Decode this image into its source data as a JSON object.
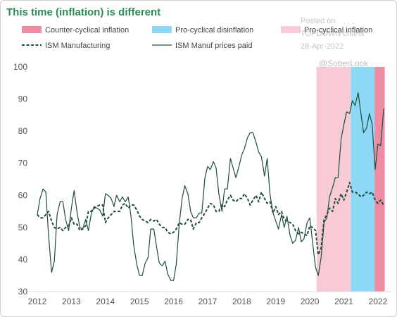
{
  "title": "This time (inflation) is different",
  "watermark": {
    "line1": "Posted on",
    "line2": "TOPDOWN charts",
    "line3": "28-Apr-2022"
  },
  "handle": "@SoberLook",
  "colors": {
    "title": "#2e8b57",
    "counter_cyclical": "#f08ba3",
    "pro_cyclical_disinflation": "#8cd8f6",
    "pro_cyclical_inflation": "#f7cad6",
    "line": "#1f4d3a",
    "axis": "#dddddd"
  },
  "chart_data": {
    "type": "line",
    "title": "This time (inflation) is different",
    "xlim": [
      2012,
      2022.25
    ],
    "ylim": [
      30,
      100
    ],
    "x_ticks": [
      "2012",
      "2013",
      "2014",
      "2015",
      "2016",
      "2017",
      "2018",
      "2019",
      "2020",
      "2021",
      "2022"
    ],
    "y_ticks": [
      30,
      40,
      50,
      60,
      70,
      80,
      90,
      100
    ],
    "legend_position": "top",
    "shaded_regions": [
      {
        "name": "Counter-cyclical inflation",
        "start": 2021.9,
        "end": 2022.2,
        "color": "#f08ba3"
      },
      {
        "name": "Pro-cyclical disinflation",
        "start": 2021.2,
        "end": 2021.9,
        "color": "#8cd8f6"
      },
      {
        "name": "Pro-cyclical inflation",
        "start": 2020.2,
        "end": 2021.2,
        "color": "#f7cad6"
      }
    ],
    "series": [
      {
        "name": "ISM Manufacturing",
        "style": "dashed",
        "points": [
          [
            2012.0,
            54
          ],
          [
            2012.08,
            53
          ],
          [
            2012.17,
            53
          ],
          [
            2012.25,
            54
          ],
          [
            2012.33,
            55
          ],
          [
            2012.42,
            52
          ],
          [
            2012.5,
            50
          ],
          [
            2012.58,
            49.5
          ],
          [
            2012.67,
            50
          ],
          [
            2012.75,
            49
          ],
          [
            2012.83,
            50
          ],
          [
            2012.92,
            50.5
          ],
          [
            2013.0,
            53
          ],
          [
            2013.08,
            51
          ],
          [
            2013.17,
            51
          ],
          [
            2013.25,
            49
          ],
          [
            2013.33,
            49.5
          ],
          [
            2013.42,
            50.5
          ],
          [
            2013.5,
            55
          ],
          [
            2013.58,
            55
          ],
          [
            2013.67,
            56
          ],
          [
            2013.75,
            56.5
          ],
          [
            2013.83,
            57
          ],
          [
            2013.92,
            57
          ],
          [
            2014.0,
            51.5
          ],
          [
            2014.08,
            53
          ],
          [
            2014.17,
            54
          ],
          [
            2014.25,
            55
          ],
          [
            2014.33,
            55
          ],
          [
            2014.42,
            55
          ],
          [
            2014.5,
            57
          ],
          [
            2014.58,
            57.5
          ],
          [
            2014.67,
            56
          ],
          [
            2014.75,
            57
          ],
          [
            2014.83,
            57
          ],
          [
            2014.92,
            55.5
          ],
          [
            2015.0,
            53.5
          ],
          [
            2015.08,
            52.5
          ],
          [
            2015.17,
            52
          ],
          [
            2015.25,
            51.5
          ],
          [
            2015.33,
            52.5
          ],
          [
            2015.42,
            52
          ],
          [
            2015.5,
            52.5
          ],
          [
            2015.58,
            51
          ],
          [
            2015.67,
            50
          ],
          [
            2015.75,
            50
          ],
          [
            2015.83,
            48.5
          ],
          [
            2015.92,
            48
          ],
          [
            2016.0,
            48.5
          ],
          [
            2016.08,
            49.5
          ],
          [
            2016.17,
            51.5
          ],
          [
            2016.25,
            51
          ],
          [
            2016.33,
            51
          ],
          [
            2016.42,
            52.5
          ],
          [
            2016.5,
            52.5
          ],
          [
            2016.58,
            49.5
          ],
          [
            2016.67,
            51.5
          ],
          [
            2016.75,
            51.5
          ],
          [
            2016.83,
            53
          ],
          [
            2016.92,
            54.5
          ],
          [
            2017.0,
            56
          ],
          [
            2017.08,
            57.5
          ],
          [
            2017.17,
            57
          ],
          [
            2017.25,
            55
          ],
          [
            2017.33,
            55
          ],
          [
            2017.42,
            57
          ],
          [
            2017.5,
            56.5
          ],
          [
            2017.58,
            58.5
          ],
          [
            2017.67,
            60
          ],
          [
            2017.75,
            58.5
          ],
          [
            2017.83,
            58
          ],
          [
            2017.92,
            59
          ],
          [
            2018.0,
            59
          ],
          [
            2018.08,
            60.5
          ],
          [
            2018.17,
            59
          ],
          [
            2018.25,
            57
          ],
          [
            2018.33,
            58.5
          ],
          [
            2018.42,
            60
          ],
          [
            2018.5,
            58
          ],
          [
            2018.58,
            61
          ],
          [
            2018.67,
            59
          ],
          [
            2018.75,
            57.5
          ],
          [
            2018.83,
            58
          ],
          [
            2018.92,
            54.5
          ],
          [
            2019.0,
            56.5
          ],
          [
            2019.08,
            54
          ],
          [
            2019.17,
            55
          ],
          [
            2019.25,
            52.5
          ],
          [
            2019.33,
            52
          ],
          [
            2019.42,
            51.5
          ],
          [
            2019.5,
            51
          ],
          [
            2019.58,
            49
          ],
          [
            2019.67,
            48
          ],
          [
            2019.75,
            48.5
          ],
          [
            2019.83,
            48
          ],
          [
            2019.92,
            47.5
          ],
          [
            2020.0,
            50.5
          ],
          [
            2020.08,
            50
          ],
          [
            2020.17,
            49
          ],
          [
            2020.25,
            41.5
          ],
          [
            2020.33,
            43.5
          ],
          [
            2020.42,
            52.5
          ],
          [
            2020.5,
            54
          ],
          [
            2020.58,
            56
          ],
          [
            2020.67,
            55
          ],
          [
            2020.75,
            59
          ],
          [
            2020.83,
            57.5
          ],
          [
            2020.92,
            60.5
          ],
          [
            2021.0,
            58.5
          ],
          [
            2021.08,
            61
          ],
          [
            2021.17,
            64
          ],
          [
            2021.25,
            61
          ],
          [
            2021.33,
            61
          ],
          [
            2021.42,
            60.5
          ],
          [
            2021.5,
            59.5
          ],
          [
            2021.58,
            60
          ],
          [
            2021.67,
            61
          ],
          [
            2021.75,
            60.5
          ],
          [
            2021.83,
            61
          ],
          [
            2021.92,
            58.5
          ],
          [
            2022.0,
            57.5
          ],
          [
            2022.08,
            58.5
          ],
          [
            2022.17,
            57
          ]
        ]
      },
      {
        "name": "ISM Manuf prices paid",
        "style": "solid",
        "points": [
          [
            2012.0,
            54
          ],
          [
            2012.08,
            59
          ],
          [
            2012.17,
            62
          ],
          [
            2012.25,
            61
          ],
          [
            2012.33,
            47.5
          ],
          [
            2012.42,
            36
          ],
          [
            2012.5,
            39.5
          ],
          [
            2012.58,
            54
          ],
          [
            2012.67,
            58
          ],
          [
            2012.75,
            58
          ],
          [
            2012.83,
            52.5
          ],
          [
            2012.92,
            49
          ],
          [
            2013.0,
            56
          ],
          [
            2013.08,
            61.5
          ],
          [
            2013.17,
            54.5
          ],
          [
            2013.25,
            50
          ],
          [
            2013.33,
            49.5
          ],
          [
            2013.42,
            52.5
          ],
          [
            2013.5,
            49
          ],
          [
            2013.58,
            54
          ],
          [
            2013.67,
            56.5
          ],
          [
            2013.75,
            56
          ],
          [
            2013.83,
            55.5
          ],
          [
            2013.92,
            53.5
          ],
          [
            2014.0,
            60.5
          ],
          [
            2014.08,
            60
          ],
          [
            2014.17,
            59
          ],
          [
            2014.25,
            56.5
          ],
          [
            2014.33,
            60
          ],
          [
            2014.42,
            58
          ],
          [
            2014.5,
            59.5
          ],
          [
            2014.58,
            58
          ],
          [
            2014.67,
            59.5
          ],
          [
            2014.75,
            53.5
          ],
          [
            2014.83,
            44.5
          ],
          [
            2014.92,
            38.5
          ],
          [
            2015.0,
            35
          ],
          [
            2015.08,
            35
          ],
          [
            2015.17,
            39
          ],
          [
            2015.25,
            40.5
          ],
          [
            2015.33,
            49.5
          ],
          [
            2015.42,
            49.5
          ],
          [
            2015.5,
            44
          ],
          [
            2015.58,
            39
          ],
          [
            2015.67,
            38
          ],
          [
            2015.75,
            39.5
          ],
          [
            2015.83,
            35.5
          ],
          [
            2015.92,
            33.5
          ],
          [
            2016.0,
            33.5
          ],
          [
            2016.08,
            38.5
          ],
          [
            2016.17,
            51.5
          ],
          [
            2016.25,
            59
          ],
          [
            2016.33,
            63
          ],
          [
            2016.42,
            60.5
          ],
          [
            2016.5,
            55
          ],
          [
            2016.58,
            53
          ],
          [
            2016.67,
            53
          ],
          [
            2016.75,
            54.5
          ],
          [
            2016.83,
            54.5
          ],
          [
            2016.92,
            65.5
          ],
          [
            2017.0,
            69
          ],
          [
            2017.08,
            68
          ],
          [
            2017.17,
            70.5
          ],
          [
            2017.25,
            68.5
          ],
          [
            2017.33,
            60.5
          ],
          [
            2017.42,
            55
          ],
          [
            2017.5,
            62
          ],
          [
            2017.58,
            62
          ],
          [
            2017.67,
            71.5
          ],
          [
            2017.75,
            68.5
          ],
          [
            2017.83,
            65.5
          ],
          [
            2017.92,
            69
          ],
          [
            2018.0,
            72.5
          ],
          [
            2018.08,
            74.5
          ],
          [
            2018.17,
            78
          ],
          [
            2018.25,
            79.5
          ],
          [
            2018.33,
            79.5
          ],
          [
            2018.42,
            76.5
          ],
          [
            2018.5,
            73.5
          ],
          [
            2018.58,
            72
          ],
          [
            2018.67,
            66
          ],
          [
            2018.75,
            71.5
          ],
          [
            2018.83,
            60.5
          ],
          [
            2018.92,
            54.5
          ],
          [
            2019.0,
            52
          ],
          [
            2019.08,
            49.5
          ],
          [
            2019.17,
            54
          ],
          [
            2019.25,
            50
          ],
          [
            2019.33,
            53.5
          ],
          [
            2019.42,
            47.5
          ],
          [
            2019.5,
            45
          ],
          [
            2019.58,
            46
          ],
          [
            2019.67,
            50
          ],
          [
            2019.75,
            45.5
          ],
          [
            2019.83,
            46.5
          ],
          [
            2019.92,
            51.5
          ],
          [
            2020.0,
            53
          ],
          [
            2020.08,
            45.5
          ],
          [
            2020.17,
            37.5
          ],
          [
            2020.25,
            35
          ],
          [
            2020.33,
            40.5
          ],
          [
            2020.42,
            51.5
          ],
          [
            2020.5,
            53
          ],
          [
            2020.58,
            59.5
          ],
          [
            2020.67,
            62.5
          ],
          [
            2020.75,
            65.5
          ],
          [
            2020.83,
            65.5
          ],
          [
            2020.92,
            77.5
          ],
          [
            2021.0,
            82
          ],
          [
            2021.08,
            86
          ],
          [
            2021.17,
            85.5
          ],
          [
            2021.25,
            89.5
          ],
          [
            2021.33,
            88
          ],
          [
            2021.42,
            92
          ],
          [
            2021.5,
            85.5
          ],
          [
            2021.58,
            79.5
          ],
          [
            2021.67,
            81
          ],
          [
            2021.75,
            85.5
          ],
          [
            2021.83,
            82
          ],
          [
            2021.92,
            68
          ],
          [
            2022.0,
            76
          ],
          [
            2022.08,
            75.5
          ],
          [
            2022.17,
            87
          ]
        ]
      }
    ]
  }
}
